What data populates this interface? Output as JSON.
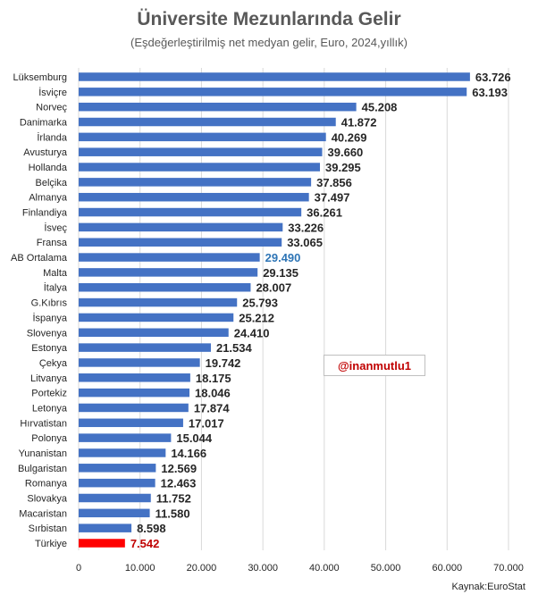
{
  "title": "Üniversite Mezunlarında Gelir",
  "subtitle": "(Eşdeğerleştirilmiş net medyan gelir, Euro, 2024,yıllık)",
  "watermark": "@inanmutlu1",
  "source": "Kaynak:EuroStat",
  "colors": {
    "bar": "#4472c4",
    "highlight_bar": "#ff0000",
    "label": "#262626",
    "highlight_label_avg": "#2e75b6",
    "highlight_label_tr": "#c00000",
    "grid": "#d9d9d9"
  },
  "chart_data": {
    "type": "bar",
    "orientation": "horizontal",
    "categories": [
      "Lüksemburg",
      "İsviçre",
      "Norveç",
      "Danimarka",
      "İrlanda",
      "Avusturya",
      "Hollanda",
      "Belçika",
      "Almanya",
      "Finlandiya",
      "İsveç",
      "Fransa",
      "AB Ortalama",
      "Malta",
      "İtalya",
      "G.Kıbrıs",
      "İspanya",
      "Slovenya",
      "Estonya",
      "Çekya",
      "Litvanya",
      "Portekiz",
      "Letonya",
      "Hırvatistan",
      "Polonya",
      "Yunanistan",
      "Bulgaristan",
      "Romanya",
      "Slovakya",
      "Macaristan",
      "Sırbistan",
      "Türkiye"
    ],
    "values": [
      63726,
      63193,
      45208,
      41872,
      40269,
      39660,
      39295,
      37856,
      37497,
      36261,
      33226,
      33065,
      29490,
      29135,
      28007,
      25793,
      25212,
      24410,
      21534,
      19742,
      18175,
      18046,
      17874,
      17017,
      15044,
      14166,
      12569,
      12463,
      11752,
      11580,
      8598,
      7542
    ],
    "value_labels": [
      "63.726",
      "63.193",
      "45.208",
      "41.872",
      "40.269",
      "39.660",
      "39.295",
      "37.856",
      "37.497",
      "36.261",
      "33.226",
      "33.065",
      "29.490",
      "29.135",
      "28.007",
      "25.793",
      "25.212",
      "24.410",
      "21.534",
      "19.742",
      "18.175",
      "18.046",
      "17.874",
      "17.017",
      "15.044",
      "14.166",
      "12.569",
      "12.463",
      "11.752",
      "11.580",
      "8.598",
      "7.542"
    ],
    "x_ticks": [
      0,
      10000,
      20000,
      30000,
      40000,
      50000,
      60000,
      70000
    ],
    "x_tick_labels": [
      "0",
      "10.000",
      "20.000",
      "30.000",
      "40.000",
      "50.000",
      "60.000",
      "70.000"
    ],
    "xlim": [
      0,
      70000
    ],
    "grid": "vertical",
    "highlight": {
      "AB Ortalama": "average",
      "Türkiye": "turkey"
    }
  }
}
